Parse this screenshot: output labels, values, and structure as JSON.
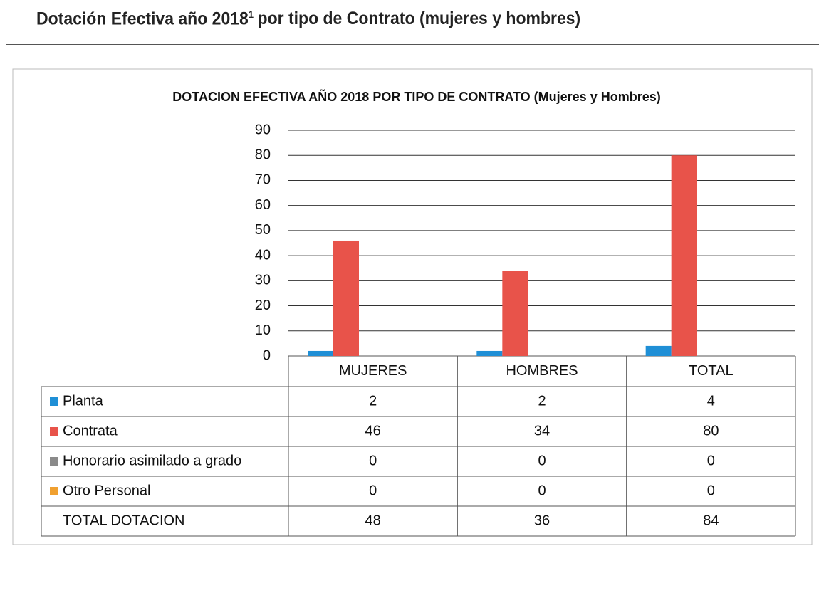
{
  "heading": "Dotación Efectiva año 2018",
  "heading_sup": "1",
  "heading_rest": "por tipo de Contrato (mujeres y hombres)",
  "chart_data": {
    "type": "bar",
    "title": "DOTACION  EFECTIVA  AÑO  2018 POR TIPO DE CONTRATO  (Mujeres y Hombres)",
    "categories": [
      "MUJERES",
      "HOMBRES",
      "TOTAL"
    ],
    "series": [
      {
        "name": "Planta",
        "color": "#1f8fd6",
        "values": [
          2,
          2,
          4
        ]
      },
      {
        "name": "Contrata",
        "color": "#e8534a",
        "values": [
          46,
          34,
          80
        ]
      },
      {
        "name": "Honorario asimilado a grado",
        "color": "#8a8a8a",
        "values": [
          0,
          0,
          0
        ]
      },
      {
        "name": "Otro Personal",
        "color": "#f0a030",
        "values": [
          0,
          0,
          0
        ]
      }
    ],
    "totals": {
      "name": "TOTAL DOTACION",
      "values": [
        48,
        36,
        84
      ]
    },
    "ylim": [
      0,
      90
    ],
    "yticks": [
      0,
      10,
      20,
      30,
      40,
      50,
      60,
      70,
      80,
      90
    ],
    "grid": true
  }
}
